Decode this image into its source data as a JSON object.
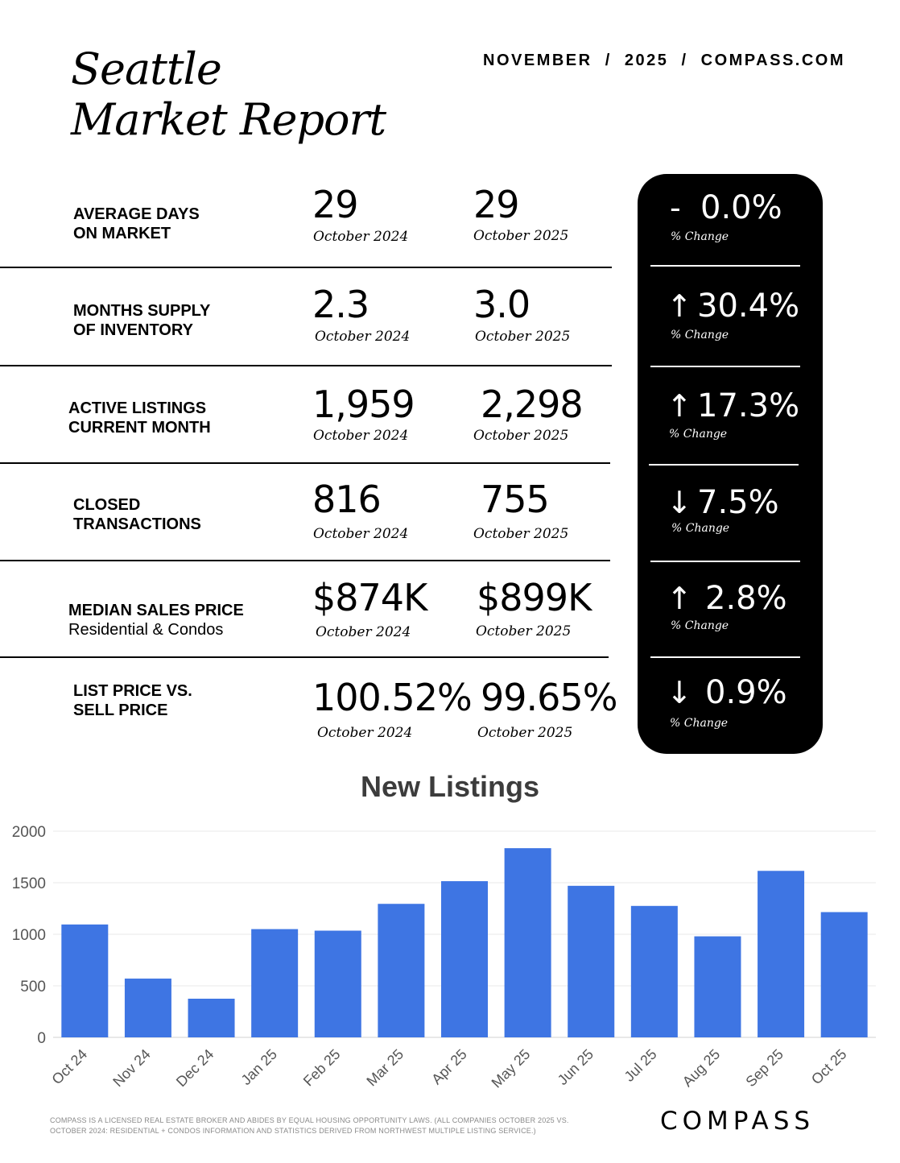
{
  "header": {
    "title_line1": "Seattle",
    "title_line2": "Market Report",
    "meta": "NOVEMBER  /  2025  /  COMPASS.COM"
  },
  "metrics": [
    {
      "label": "AVERAGE DAYS\nON MARKET",
      "sublabel": "",
      "value_prev": "29",
      "period_prev": "October 2024",
      "value_curr": "29",
      "period_curr": "October 2025",
      "change": "0.0%",
      "change_direction": "none",
      "change_label": "% Change"
    },
    {
      "label": "MONTHS SUPPLY\nOF INVENTORY",
      "sublabel": "",
      "value_prev": "2.3",
      "period_prev": "October 2024",
      "value_curr": "3.0",
      "period_curr": "October 2025",
      "change": "30.4%",
      "change_direction": "up",
      "change_label": "% Change"
    },
    {
      "label": "ACTIVE LISTINGS\nCURRENT MONTH",
      "sublabel": "",
      "value_prev": "1,959",
      "period_prev": "October 2024",
      "value_curr": "2,298",
      "period_curr": "October 2025",
      "change": "17.3%",
      "change_direction": "up",
      "change_label": "% Change"
    },
    {
      "label": "CLOSED\nTRANSACTIONS",
      "sublabel": "",
      "value_prev": "816",
      "period_prev": "October 2024",
      "value_curr": "755",
      "period_curr": "October 2025",
      "change": "7.5%",
      "change_direction": "down",
      "change_label": "% Change"
    },
    {
      "label": "MEDIAN SALES PRICE",
      "sublabel": "Residential & Condos",
      "value_prev": "$874K",
      "period_prev": "October 2024",
      "value_curr": "$899K",
      "period_curr": "October 2025",
      "change": "2.8%",
      "change_direction": "up",
      "change_label": "% Change"
    },
    {
      "label": "LIST PRICE VS.\nSELL PRICE",
      "sublabel": "",
      "value_prev": "100.52%",
      "period_prev": "October 2024",
      "value_curr": "99.65%",
      "period_curr": "October 2025",
      "change": "0.9%",
      "change_direction": "down",
      "change_label": "% Change"
    }
  ],
  "arrow_glyphs": {
    "up": "↑",
    "down": "↓",
    "none": "-"
  },
  "chart_data": {
    "type": "bar",
    "title": "New Listings",
    "categories": [
      "Oct 24",
      "Nov 24",
      "Dec 24",
      "Jan 25",
      "Feb 25",
      "Mar 25",
      "Apr 25",
      "May 25",
      "Jun 25",
      "Jul 25",
      "Aug 25",
      "Sep 25",
      "Oct 25"
    ],
    "values": [
      1095,
      570,
      375,
      1050,
      1035,
      1295,
      1515,
      1835,
      1470,
      1275,
      980,
      1615,
      1215
    ],
    "yticks": [
      0,
      500,
      1000,
      1500,
      2000
    ],
    "ylim": [
      0,
      2000
    ],
    "grid": true,
    "bar_color": "#3e75e3"
  },
  "footer": {
    "disclaimer": "COMPASS IS A LICENSED REAL ESTATE BROKER AND ABIDES BY EQUAL HOUSING OPPORTUNITY LAWS. (ALL COMPANIES OCTOBER 2025 VS. OCTOBER 2024: RESIDENTIAL + CONDOS INFORMATION AND STATISTICS DERIVED FROM NORTHWEST MULTIPLE LISTING SERVICE.)",
    "logo": "COMPASS"
  }
}
